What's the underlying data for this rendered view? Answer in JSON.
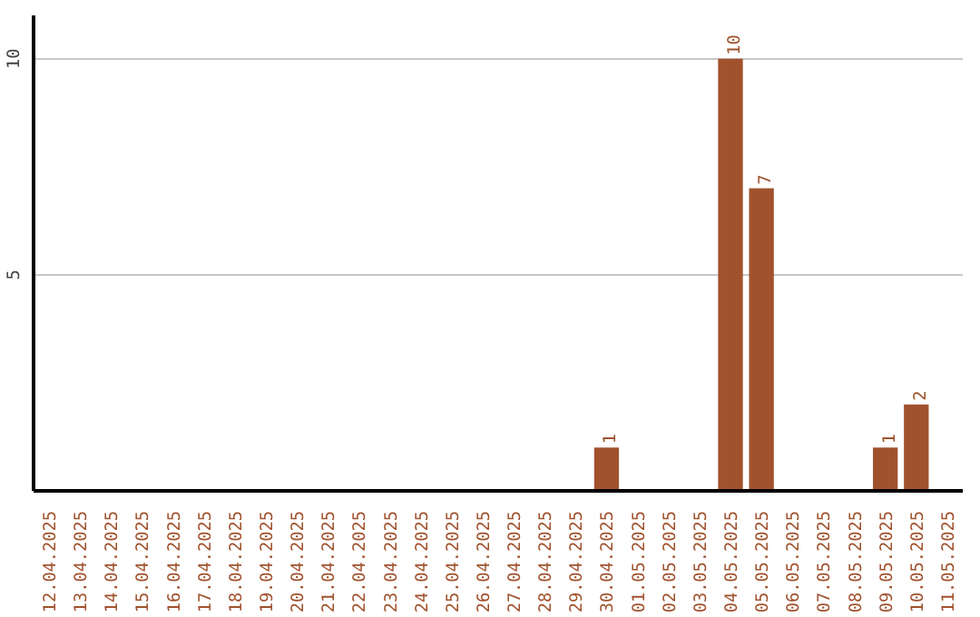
{
  "chart_data": {
    "type": "bar",
    "categories": [
      "12.04.2025",
      "13.04.2025",
      "14.04.2025",
      "15.04.2025",
      "16.04.2025",
      "17.04.2025",
      "18.04.2025",
      "19.04.2025",
      "20.04.2025",
      "21.04.2025",
      "22.04.2025",
      "23.04.2025",
      "24.04.2025",
      "25.04.2025",
      "26.04.2025",
      "27.04.2025",
      "28.04.2025",
      "29.04.2025",
      "30.04.2025",
      "01.05.2025",
      "02.05.2025",
      "03.05.2025",
      "04.05.2025",
      "05.05.2025",
      "06.05.2025",
      "07.05.2025",
      "08.05.2025",
      "09.05.2025",
      "10.05.2025",
      "11.05.2025"
    ],
    "values": [
      0,
      0,
      0,
      0,
      0,
      0,
      0,
      0,
      0,
      0,
      0,
      0,
      0,
      0,
      0,
      0,
      0,
      0,
      1,
      0,
      0,
      0,
      10,
      7,
      0,
      0,
      0,
      1,
      2,
      0
    ],
    "value_labels": [
      null,
      null,
      null,
      null,
      null,
      null,
      null,
      null,
      null,
      null,
      null,
      null,
      null,
      null,
      null,
      null,
      null,
      null,
      "1",
      null,
      null,
      null,
      "10",
      "7",
      null,
      null,
      null,
      "1",
      "2",
      null
    ],
    "color": "#a0522d",
    "ylim": [
      0,
      11
    ],
    "yticks": [
      5,
      10
    ],
    "grid": "y"
  }
}
